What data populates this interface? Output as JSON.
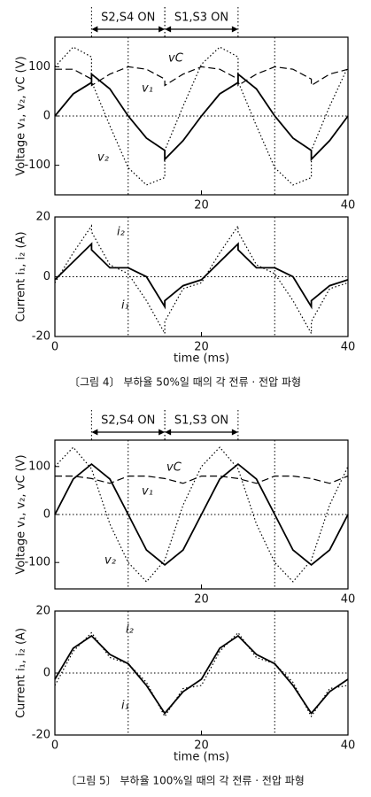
{
  "chart_data": [
    {
      "type": "line",
      "ylabel": "Voltage v₁, v₂, vC (V)",
      "phases": [
        {
          "label": "S2,S4 ON",
          "range": [
            5,
            15
          ]
        },
        {
          "label": "S1,S3 ON",
          "range": [
            15,
            25
          ]
        }
      ],
      "x": [
        0,
        2.5,
        5,
        5,
        7.5,
        10,
        12.5,
        15,
        15,
        17.5,
        20,
        22.5,
        25,
        25,
        27.5,
        30,
        32.5,
        35,
        35,
        37.5,
        40
      ],
      "series": [
        {
          "name": "v₁",
          "color": "#000",
          "style": "solid",
          "values": [
            0,
            45,
            68,
            85,
            55,
            0,
            -45,
            -70,
            -88,
            -50,
            0,
            45,
            68,
            85,
            55,
            0,
            -45,
            -70,
            -88,
            -50,
            0
          ]
        },
        {
          "name": "v₂",
          "color": "#000",
          "style": "dotted",
          "values": [
            100,
            140,
            120,
            70,
            -20,
            -105,
            -140,
            -125,
            -70,
            20,
            105,
            140,
            120,
            70,
            -20,
            -105,
            -140,
            -125,
            -70,
            20,
            100
          ]
        },
        {
          "name": "vC",
          "color": "#000",
          "style": "dashed",
          "values": [
            95,
            95,
            75,
            62,
            85,
            100,
            95,
            75,
            62,
            85,
            100,
            95,
            75,
            62,
            85,
            100,
            95,
            75,
            62,
            85,
            95
          ]
        }
      ],
      "xlim": [
        0,
        40
      ],
      "ylim": [
        -160,
        160
      ],
      "xticks": [
        20,
        40
      ],
      "yticks": [
        -100,
        0,
        100
      ],
      "guides": [
        10,
        30
      ],
      "zero_line": true
    },
    {
      "type": "line",
      "ylabel": "Current i₁, i₂ (A)",
      "xlabel": "time (ms)",
      "x": [
        0,
        2.5,
        5,
        5,
        7.5,
        10,
        12.5,
        15,
        15,
        17.5,
        20,
        22.5,
        25,
        25,
        27.5,
        30,
        32.5,
        35,
        35,
        37.5,
        40
      ],
      "series": [
        {
          "name": "i₁",
          "color": "#000",
          "style": "solid",
          "values": [
            -1,
            5,
            11,
            9,
            3,
            3,
            0,
            -10,
            -8,
            -3,
            -1,
            5,
            11,
            9,
            3,
            3,
            0,
            -10,
            -8,
            -3,
            -1
          ]
        },
        {
          "name": "i₂",
          "color": "#000",
          "style": "dotted",
          "values": [
            -2,
            8,
            17,
            15,
            4,
            1,
            -8,
            -19,
            -15,
            -4,
            -2,
            8,
            17,
            15,
            4,
            1,
            -8,
            -19,
            -15,
            -4,
            -2
          ]
        }
      ],
      "xlim": [
        0,
        40
      ],
      "ylim": [
        -20,
        20
      ],
      "xticks": [
        0,
        20,
        40
      ],
      "yticks": [
        -20,
        0,
        20
      ],
      "guides": [
        10,
        30
      ],
      "zero_line": true
    },
    {
      "type": "line",
      "ylabel": "Voltage v₁, v₂, vC (V)",
      "phases": [
        {
          "label": "S2,S4 ON",
          "range": [
            5,
            15
          ]
        },
        {
          "label": "S1,S3 ON",
          "range": [
            15,
            25
          ]
        }
      ],
      "x": [
        0,
        2.5,
        5,
        7.5,
        10,
        12.5,
        15,
        17.5,
        20,
        22.5,
        25,
        27.5,
        30,
        32.5,
        35,
        37.5,
        40
      ],
      "series": [
        {
          "name": "v₁",
          "color": "#000",
          "style": "solid",
          "values": [
            0,
            74,
            105,
            74,
            0,
            -74,
            -105,
            -74,
            0,
            74,
            105,
            74,
            0,
            -74,
            -105,
            -74,
            0
          ]
        },
        {
          "name": "v₂",
          "color": "#000",
          "style": "dotted",
          "values": [
            100,
            140,
            95,
            -20,
            -100,
            -140,
            -95,
            20,
            100,
            140,
            95,
            -20,
            -100,
            -140,
            -95,
            20,
            100
          ]
        },
        {
          "name": "vC",
          "color": "#000",
          "style": "dashed",
          "values": [
            80,
            80,
            75,
            65,
            80,
            80,
            75,
            65,
            80,
            80,
            75,
            65,
            80,
            80,
            75,
            65,
            80
          ]
        }
      ],
      "xlim": [
        0,
        40
      ],
      "ylim": [
        -155,
        155
      ],
      "xticks": [
        20,
        40
      ],
      "yticks": [
        -100,
        0,
        100
      ],
      "guides": [
        10,
        30
      ],
      "zero_line": true
    },
    {
      "type": "line",
      "ylabel": "Current i₁, i₂ (A)",
      "xlabel": "time (ms)",
      "x": [
        0,
        2.5,
        5,
        7.5,
        10,
        12.5,
        15,
        17.5,
        20,
        22.5,
        25,
        27.5,
        30,
        32.5,
        35,
        37.5,
        40
      ],
      "series": [
        {
          "name": "i₁",
          "color": "#000",
          "style": "solid",
          "values": [
            -2,
            8,
            12,
            6,
            3,
            -4,
            -13,
            -6,
            -2,
            8,
            12,
            6,
            3,
            -4,
            -13,
            -6,
            -2
          ]
        },
        {
          "name": "i₂",
          "color": "#000",
          "style": "dotted",
          "values": [
            -4,
            7,
            13,
            5,
            3,
            -3,
            -14,
            -5,
            -4,
            7,
            13,
            5,
            3,
            -3,
            -14,
            -5,
            -4
          ]
        }
      ],
      "xlim": [
        0,
        40
      ],
      "ylim": [
        -20,
        20
      ],
      "xticks": [
        0,
        20,
        40
      ],
      "yticks": [
        -20,
        0,
        20
      ],
      "guides": [
        10,
        30
      ],
      "zero_line": true
    }
  ],
  "captions": [
    "〔그림 4〕 부하율 50%일 때의 각 전류 · 전압 파형",
    "〔그림 5〕 부하율 100%일 때의 각 전류 · 전압 파형"
  ]
}
